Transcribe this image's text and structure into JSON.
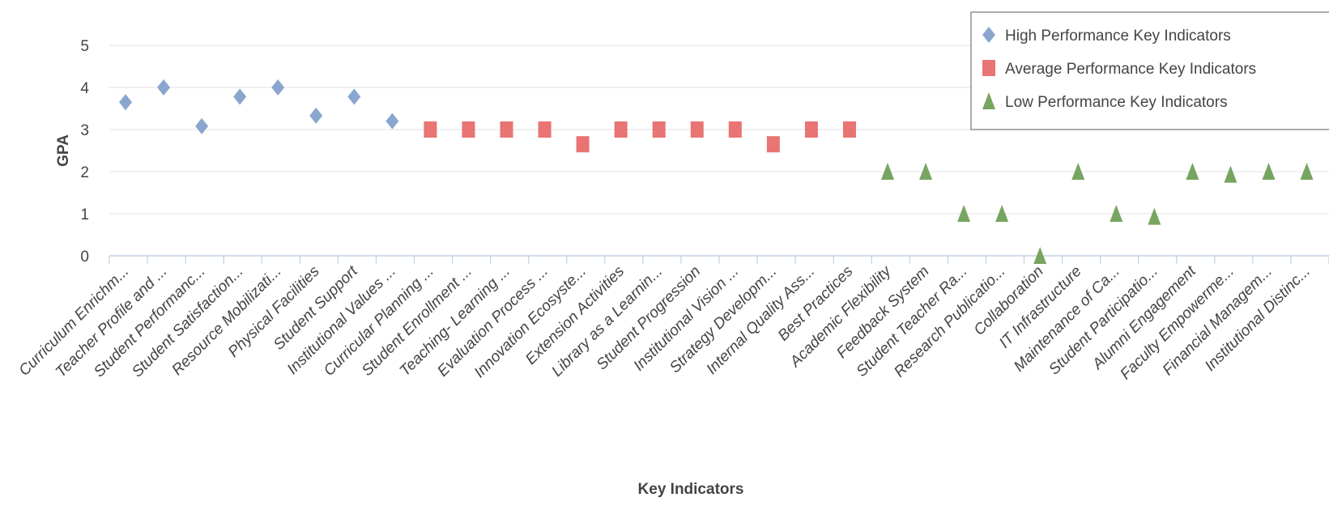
{
  "chart_data": {
    "type": "scatter",
    "xlabel": "Key Indicators",
    "ylabel": "GPA",
    "ylim": [
      0,
      5
    ],
    "yticks": [
      0,
      1,
      2,
      3,
      4,
      5
    ],
    "grid": "horizontal",
    "legend_position": "top-right",
    "categories": [
      "Curriculum Enrichm...",
      "Teacher Profile and ...",
      "Student Performanc...",
      "Student Satisfaction...",
      "Resource Mobilizati...",
      "Physical Facilities",
      "Student Support",
      "Institutional Values ...",
      "Curricular Planning ...",
      "Student Enrollment ...",
      "Teaching- Learning ...",
      "Evaluation Process ...",
      "Innovation Ecosyste...",
      "Extension Activities",
      "Library as a Learnin...",
      "Student Progression",
      "Institutional Vision ...",
      "Strategy Developm...",
      "Internal Quality Ass...",
      "Best Practices",
      "Academic Flexibility",
      "Feedback System",
      "Student Teacher Ra...",
      "Research Publicatio...",
      "Collaboration",
      "IT Infrastructure",
      "Maintenance of Ca...",
      "Student Participatio...",
      "Alumni Engagement",
      "Faculty Empowerme...",
      "Financial Managem...",
      "Institutional Distinc..."
    ],
    "series": [
      {
        "name": "High Performance Key Indicators",
        "marker": "diamond",
        "color": "#8aa6cf",
        "points": [
          {
            "category": 0,
            "value": 3.65
          },
          {
            "category": 1,
            "value": 4.0
          },
          {
            "category": 2,
            "value": 3.08
          },
          {
            "category": 3,
            "value": 3.78
          },
          {
            "category": 4,
            "value": 4.0
          },
          {
            "category": 5,
            "value": 3.33
          },
          {
            "category": 6,
            "value": 3.78
          },
          {
            "category": 7,
            "value": 3.2
          }
        ]
      },
      {
        "name": "Average Performance Key Indicators",
        "marker": "square",
        "color": "#e87473",
        "points": [
          {
            "category": 8,
            "value": 3.0
          },
          {
            "category": 9,
            "value": 3.0
          },
          {
            "category": 10,
            "value": 3.0
          },
          {
            "category": 11,
            "value": 3.0
          },
          {
            "category": 12,
            "value": 2.65
          },
          {
            "category": 13,
            "value": 3.0
          },
          {
            "category": 14,
            "value": 3.0
          },
          {
            "category": 15,
            "value": 3.0
          },
          {
            "category": 16,
            "value": 3.0
          },
          {
            "category": 17,
            "value": 2.65
          },
          {
            "category": 18,
            "value": 3.0
          },
          {
            "category": 19,
            "value": 3.0
          }
        ]
      },
      {
        "name": "Low Performance Key Indicators",
        "marker": "triangle",
        "color": "#77a55f",
        "points": [
          {
            "category": 20,
            "value": 2.0
          },
          {
            "category": 21,
            "value": 2.0
          },
          {
            "category": 22,
            "value": 1.0
          },
          {
            "category": 23,
            "value": 1.0
          },
          {
            "category": 24,
            "value": 0.0
          },
          {
            "category": 25,
            "value": 2.0
          },
          {
            "category": 26,
            "value": 1.0
          },
          {
            "category": 27,
            "value": 0.93
          },
          {
            "category": 28,
            "value": 2.0
          },
          {
            "category": 29,
            "value": 1.93
          },
          {
            "category": 30,
            "value": 2.0
          },
          {
            "category": 31,
            "value": 2.0
          }
        ]
      }
    ]
  }
}
